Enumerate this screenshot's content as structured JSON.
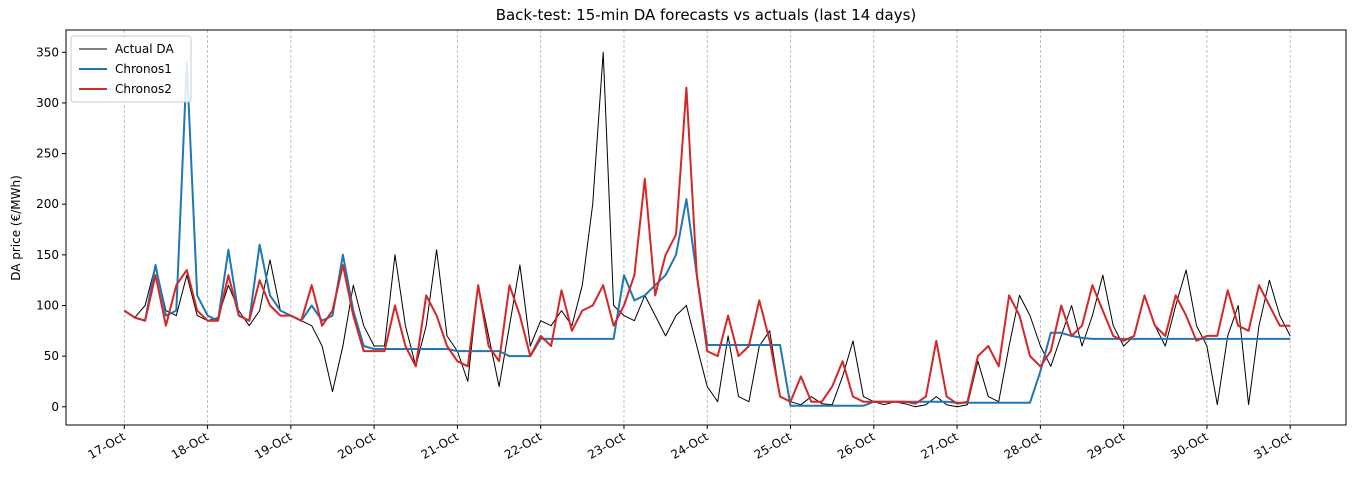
{
  "chart_data": {
    "type": "line",
    "title": "Back-test: 15-min DA forecasts vs actuals  (last 14 days)",
    "y_label": "DA price  (€/MWh)",
    "legend": "upper left",
    "grid": "x",
    "xlim": [
      -0.7,
      14.67
    ],
    "ylim": [
      -18,
      372
    ],
    "yticks": [
      0,
      50,
      100,
      150,
      200,
      250,
      300,
      350
    ],
    "xticks": [
      {
        "value": 0,
        "label": "17-Oct"
      },
      {
        "value": 1,
        "label": "18-Oct"
      },
      {
        "value": 2,
        "label": "19-Oct"
      },
      {
        "value": 3,
        "label": "20-Oct"
      },
      {
        "value": 4,
        "label": "21-Oct"
      },
      {
        "value": 5,
        "label": "22-Oct"
      },
      {
        "value": 6,
        "label": "23-Oct"
      },
      {
        "value": 7,
        "label": "24-Oct"
      },
      {
        "value": 8,
        "label": "25-Oct"
      },
      {
        "value": 9,
        "label": "26-Oct"
      },
      {
        "value": 10,
        "label": "27-Oct"
      },
      {
        "value": 11,
        "label": "28-Oct"
      },
      {
        "value": 12,
        "label": "29-Oct"
      },
      {
        "value": 13,
        "label": "30-Oct"
      },
      {
        "value": 14,
        "label": "31-Oct"
      }
    ],
    "x": [
      0,
      0.125,
      0.25,
      0.375,
      0.5,
      0.625,
      0.75,
      0.875,
      1,
      1.125,
      1.25,
      1.375,
      1.5,
      1.625,
      1.75,
      1.875,
      2,
      2.125,
      2.25,
      2.375,
      2.5,
      2.625,
      2.75,
      2.875,
      3,
      3.125,
      3.25,
      3.375,
      3.5,
      3.625,
      3.75,
      3.875,
      4,
      4.125,
      4.25,
      4.375,
      4.5,
      4.625,
      4.75,
      4.875,
      5,
      5.125,
      5.25,
      5.375,
      5.5,
      5.625,
      5.75,
      5.875,
      6,
      6.125,
      6.25,
      6.375,
      6.5,
      6.625,
      6.75,
      6.875,
      7,
      7.125,
      7.25,
      7.375,
      7.5,
      7.625,
      7.75,
      7.875,
      8,
      8.125,
      8.25,
      8.375,
      8.5,
      8.625,
      8.75,
      8.875,
      9,
      9.125,
      9.25,
      9.375,
      9.5,
      9.625,
      9.75,
      9.875,
      10,
      10.125,
      10.25,
      10.375,
      10.5,
      10.625,
      10.75,
      10.875,
      11,
      11.125,
      11.25,
      11.375,
      11.5,
      11.625,
      11.75,
      11.875,
      12,
      12.125,
      12.25,
      12.375,
      12.5,
      12.625,
      12.75,
      12.875,
      13,
      13.125,
      13.25,
      13.375,
      13.5,
      13.625,
      13.75,
      13.875,
      14
    ],
    "series": [
      {
        "name": "Actual DA",
        "color": "#000000",
        "width": 1,
        "values": [
          95,
          88,
          100,
          140,
          95,
          90,
          130,
          90,
          85,
          88,
          120,
          95,
          80,
          95,
          145,
          95,
          90,
          85,
          80,
          60,
          15,
          60,
          120,
          80,
          60,
          60,
          150,
          80,
          40,
          80,
          155,
          70,
          55,
          25,
          120,
          70,
          20,
          80,
          140,
          60,
          85,
          80,
          95,
          80,
          120,
          200,
          350,
          100,
          90,
          85,
          110,
          90,
          70,
          90,
          100,
          60,
          20,
          5,
          70,
          10,
          5,
          60,
          75,
          10,
          5,
          2,
          10,
          3,
          2,
          30,
          65,
          10,
          5,
          2,
          5,
          3,
          0,
          2,
          10,
          2,
          0,
          2,
          45,
          10,
          5,
          60,
          110,
          90,
          60,
          40,
          70,
          100,
          60,
          90,
          130,
          80,
          60,
          70,
          110,
          80,
          60,
          100,
          135,
          80,
          60,
          2,
          70,
          100,
          2,
          80,
          125,
          90,
          70
        ]
      },
      {
        "name": "Chronos1",
        "color": "#1f77b4",
        "width": 2,
        "values": [
          95,
          88,
          85,
          140,
          90,
          95,
          340,
          110,
          90,
          85,
          155,
          90,
          85,
          160,
          110,
          95,
          90,
          85,
          100,
          85,
          90,
          150,
          95,
          60,
          57,
          57,
          57,
          57,
          57,
          57,
          57,
          57,
          55,
          55,
          55,
          55,
          55,
          50,
          50,
          50,
          67,
          67,
          67,
          67,
          67,
          67,
          67,
          67,
          130,
          105,
          110,
          120,
          130,
          150,
          205,
          130,
          61,
          61,
          61,
          61,
          61,
          61,
          61,
          61,
          1,
          1,
          1,
          1,
          1,
          1,
          1,
          1,
          5,
          5,
          5,
          5,
          5,
          5,
          5,
          5,
          4,
          4,
          4,
          4,
          4,
          4,
          4,
          4,
          35,
          73,
          73,
          70,
          68,
          67,
          67,
          67,
          67,
          67,
          67,
          67,
          67,
          67,
          67,
          67,
          67,
          67,
          67,
          67,
          67,
          67,
          67,
          67,
          67
        ]
      },
      {
        "name": "Chronos2",
        "color": "#d62728",
        "width": 2,
        "values": [
          95,
          88,
          85,
          130,
          80,
          120,
          135,
          95,
          85,
          85,
          130,
          90,
          85,
          125,
          100,
          90,
          90,
          85,
          120,
          80,
          95,
          140,
          90,
          55,
          55,
          55,
          100,
          60,
          40,
          110,
          90,
          60,
          45,
          40,
          120,
          60,
          45,
          120,
          90,
          50,
          70,
          60,
          115,
          75,
          95,
          100,
          120,
          80,
          100,
          130,
          225,
          110,
          150,
          170,
          315,
          130,
          55,
          50,
          90,
          50,
          60,
          105,
          65,
          10,
          5,
          30,
          5,
          5,
          20,
          45,
          10,
          5,
          5,
          5,
          5,
          5,
          3,
          10,
          65,
          10,
          3,
          5,
          50,
          60,
          40,
          110,
          90,
          50,
          40,
          55,
          100,
          70,
          80,
          120,
          95,
          70,
          65,
          70,
          110,
          80,
          70,
          110,
          90,
          65,
          70,
          70,
          115,
          80,
          75,
          120,
          100,
          80,
          80
        ]
      }
    ]
  }
}
